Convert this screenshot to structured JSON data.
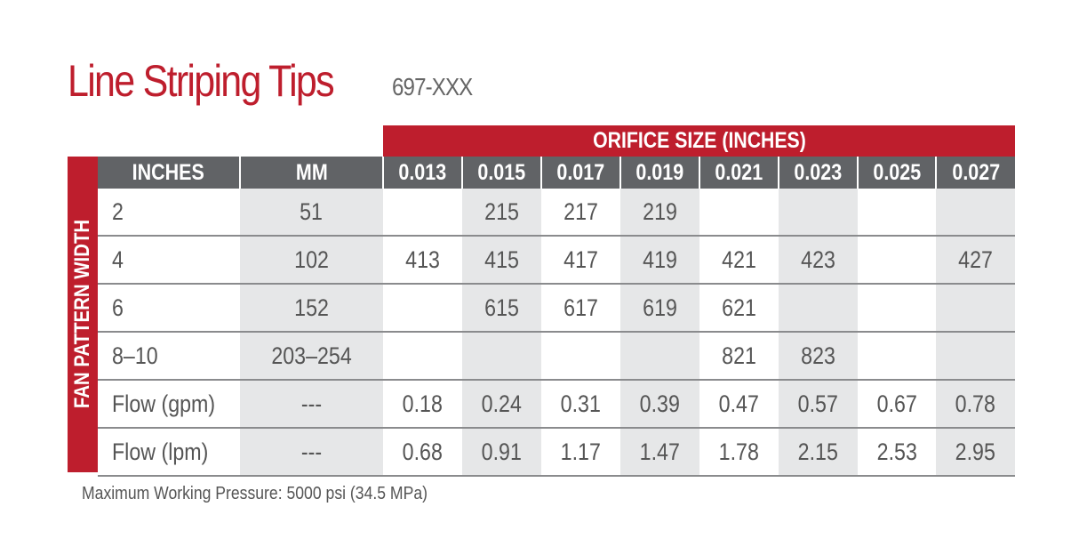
{
  "title": "Line Striping Tips",
  "part_code": "697-XXX",
  "orifice_header": "ORIFICE SIZE (INCHES)",
  "side_label": "FAN PATTERN WIDTH",
  "columns": [
    "INCHES",
    "MM",
    "0.013",
    "0.015",
    "0.017",
    "0.019",
    "0.021",
    "0.023",
    "0.025",
    "0.027"
  ],
  "rows": [
    [
      "2",
      "51",
      "",
      "215",
      "217",
      "219",
      "",
      "",
      "",
      ""
    ],
    [
      "4",
      "102",
      "413",
      "415",
      "417",
      "419",
      "421",
      "423",
      "",
      "427"
    ],
    [
      "6",
      "152",
      "",
      "615",
      "617",
      "619",
      "621",
      "",
      "",
      ""
    ],
    [
      "8–10",
      "203–254",
      "",
      "",
      "",
      "",
      "821",
      "823",
      "",
      ""
    ],
    [
      "Flow (gpm)",
      "---",
      "0.18",
      "0.24",
      "0.31",
      "0.39",
      "0.47",
      "0.57",
      "0.67",
      "0.78"
    ],
    [
      "Flow (lpm)",
      "---",
      "0.68",
      "0.91",
      "1.17",
      "1.47",
      "1.78",
      "2.15",
      "2.53",
      "2.95"
    ]
  ],
  "note": "Maximum Working Pressure: 5000 psi (34.5 MPa)",
  "colors": {
    "accent": "#be1e2d",
    "header_gray": "#616366",
    "shade": "#e6e7e8"
  }
}
